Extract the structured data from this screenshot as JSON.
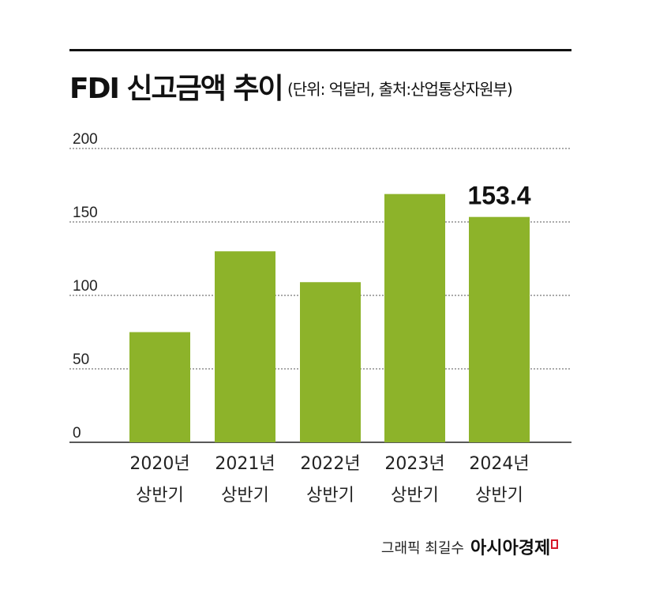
{
  "chart_data": {
    "type": "bar",
    "title": "FDI 신고금액 추이",
    "subtitle": "(단위: 억달러, 출처:산업통상자원부)",
    "categories": [
      [
        "2020년",
        "상반기"
      ],
      [
        "2021년",
        "상반기"
      ],
      [
        "2022년",
        "상반기"
      ],
      [
        "2023년",
        "상반기"
      ],
      [
        "2024년",
        "상반기"
      ]
    ],
    "values": [
      75,
      130,
      109,
      169,
      153.4
    ],
    "data_labels": [
      null,
      null,
      null,
      null,
      "153.4"
    ],
    "ylim": [
      0,
      200
    ],
    "yticks": [
      0,
      50,
      100,
      150,
      200
    ],
    "ytick_labels": [
      "0",
      "50",
      "100",
      "150",
      "200"
    ],
    "grid": true,
    "xlabel": "",
    "ylabel": "",
    "bar_color": "#8db32a"
  },
  "footer": {
    "credit": "그래픽 최길수",
    "brand": "아시아경제",
    "brand_mark_color": "#d7192a"
  }
}
